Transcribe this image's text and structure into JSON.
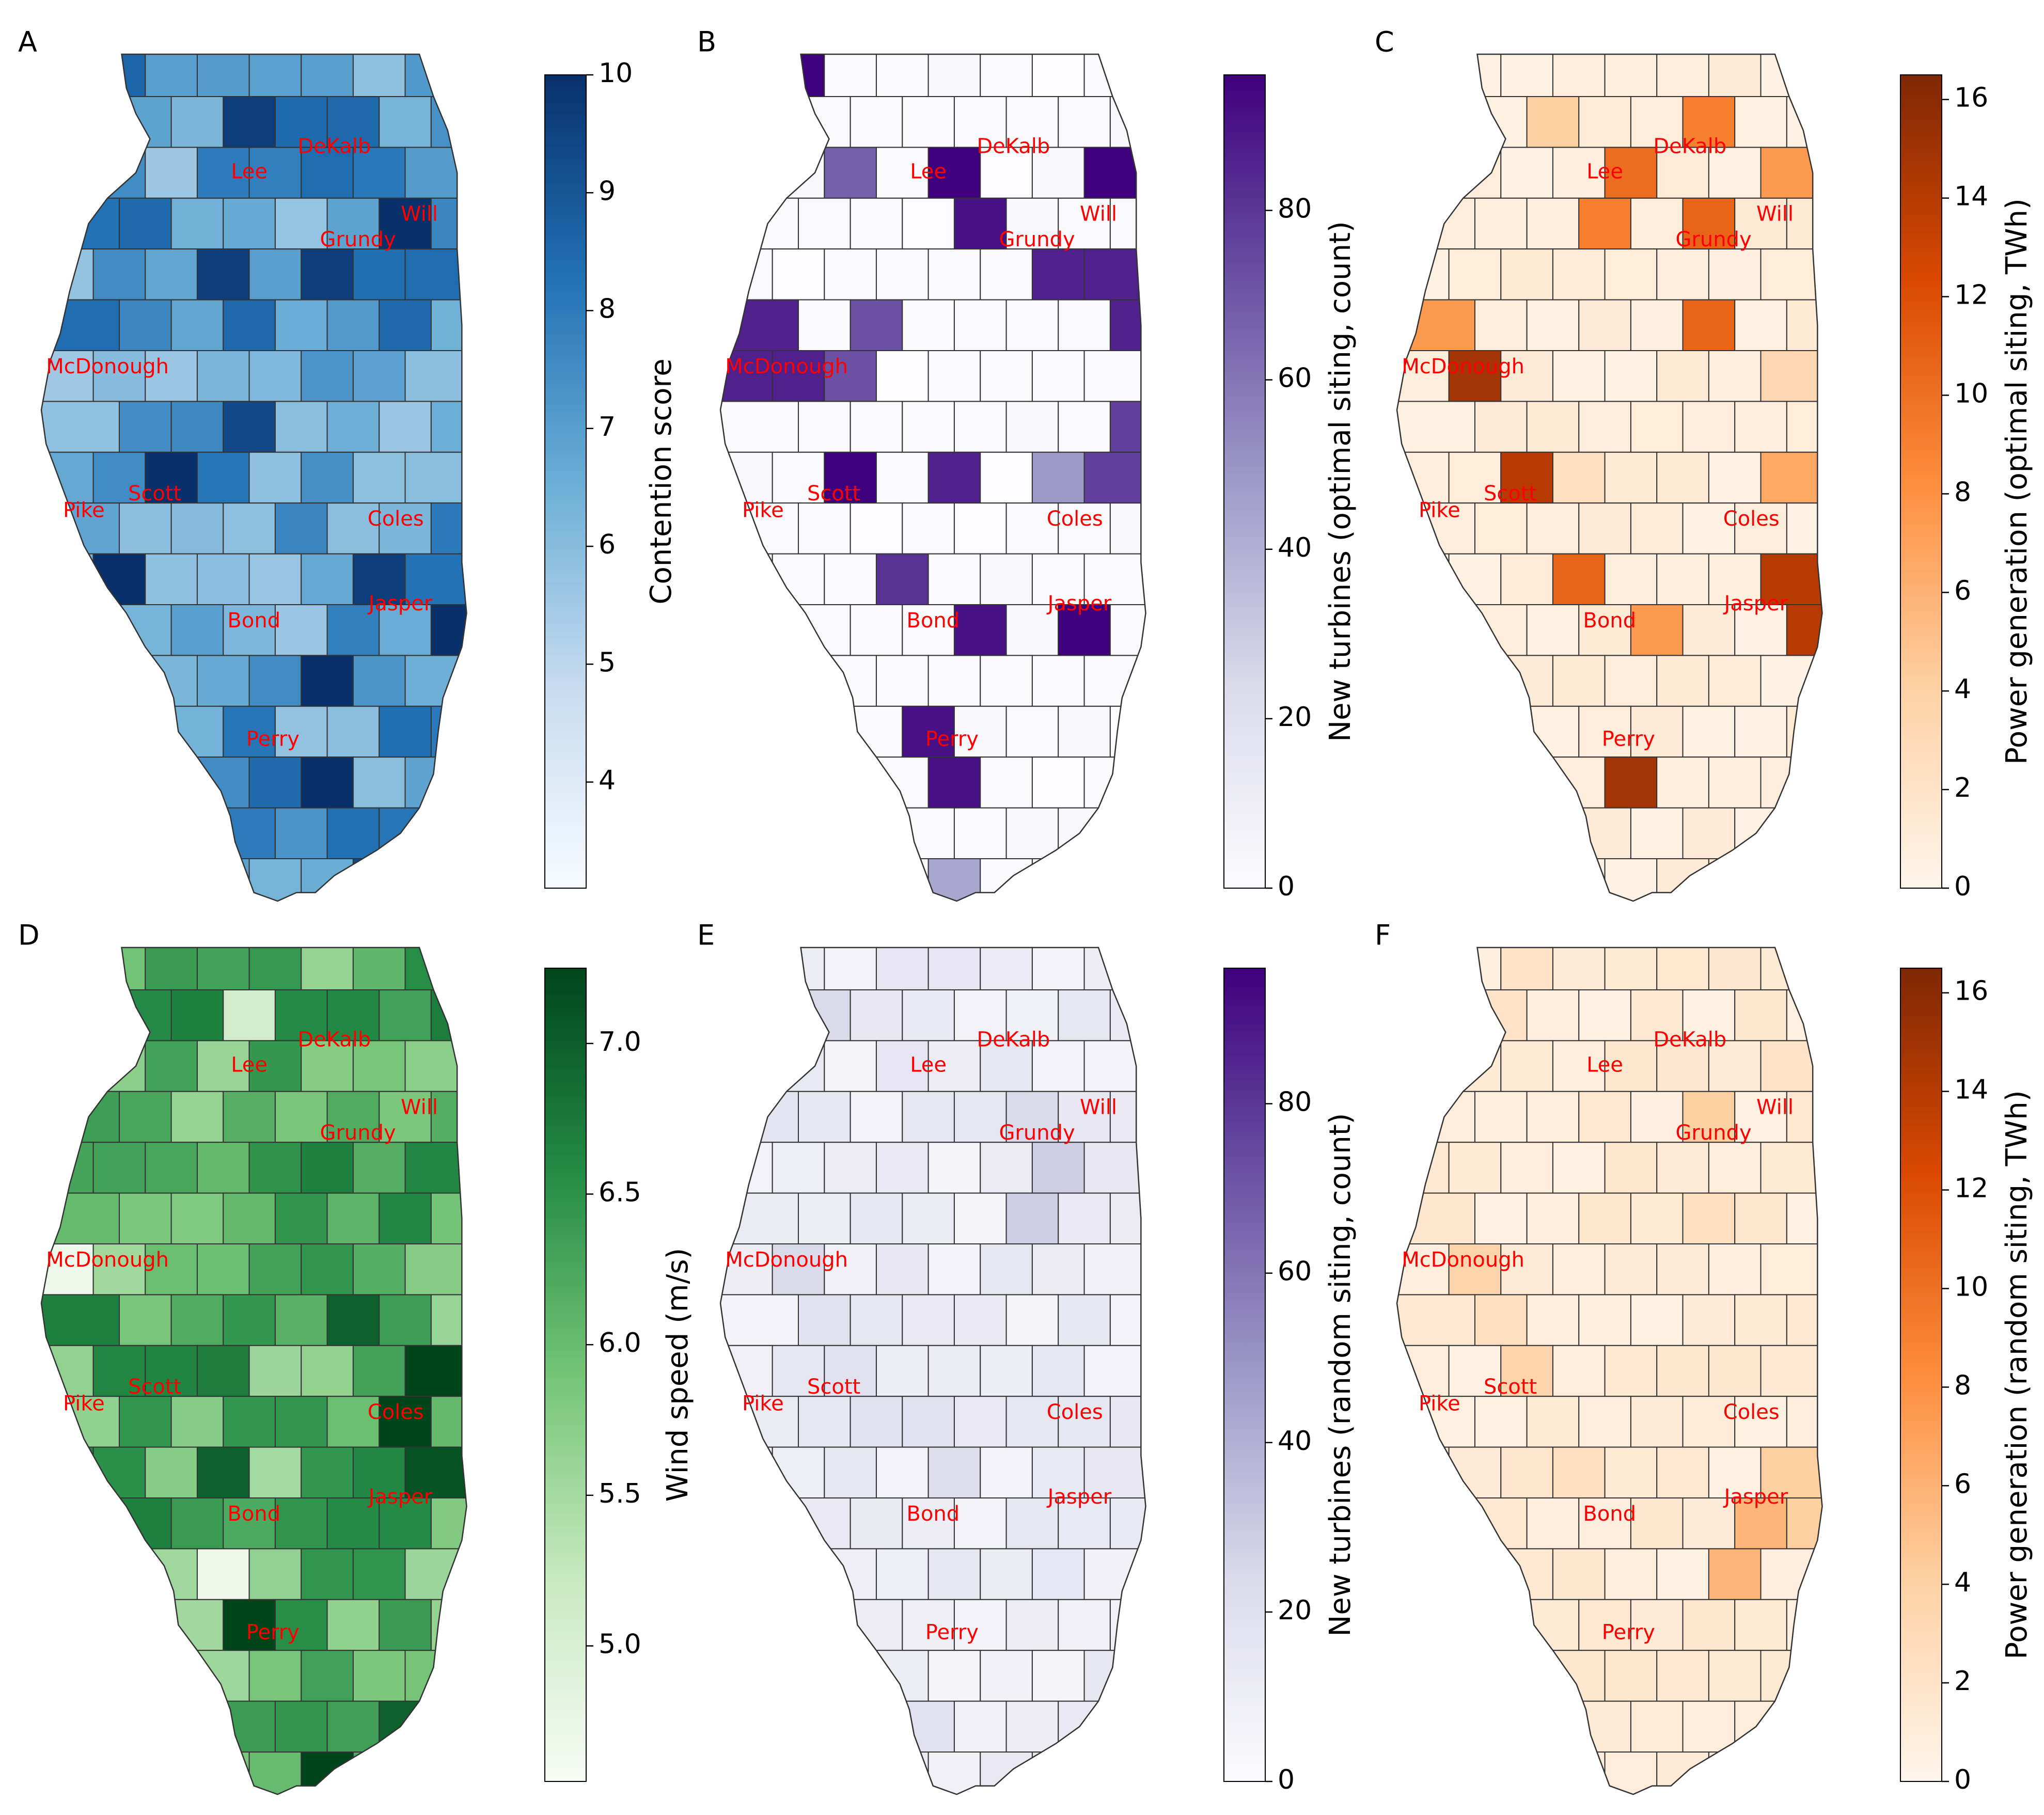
{
  "figure": {
    "panels": [
      {
        "id": "A",
        "label": "A",
        "colormap": "Blues",
        "colorbar": {
          "label": "Contention score",
          "min": 3.1,
          "max": 10,
          "ticks": [
            "4",
            "5",
            "6",
            "7",
            "8",
            "9",
            "10"
          ],
          "tick_values": [
            4,
            5,
            6,
            7,
            8,
            9,
            10
          ],
          "stops": [
            "#f7fbff",
            "#c6dbef",
            "#6baed6",
            "#2171b5",
            "#08306b"
          ]
        },
        "counties": [
          "DeKalb",
          "Lee",
          "Will",
          "Grundy",
          "McDonough",
          "Scott",
          "Pike",
          "Coles",
          "Jasper",
          "Bond",
          "Perry"
        ]
      },
      {
        "id": "B",
        "label": "B",
        "colormap": "Purples",
        "colorbar": {
          "label": "New turbines (optimal siting, count)",
          "min": 0,
          "max": 96,
          "ticks": [
            "0",
            "20",
            "40",
            "60",
            "80"
          ],
          "tick_values": [
            0,
            20,
            40,
            60,
            80
          ],
          "stops": [
            "#fcfbfd",
            "#dadaeb",
            "#9e9ac8",
            "#6a51a3",
            "#3f007d"
          ]
        },
        "counties": [
          "DeKalb",
          "Lee",
          "Will",
          "Grundy",
          "McDonough",
          "Scott",
          "Pike",
          "Coles",
          "Jasper",
          "Bond",
          "Perry"
        ]
      },
      {
        "id": "C",
        "label": "C",
        "colormap": "Oranges",
        "colorbar": {
          "label": "Power generation (optimal siting, TWh)",
          "min": 0,
          "max": 16.5,
          "ticks": [
            "0",
            "2",
            "4",
            "6",
            "8",
            "10",
            "12",
            "14",
            "16"
          ],
          "tick_values": [
            0,
            2,
            4,
            6,
            8,
            10,
            12,
            14,
            16
          ],
          "stops": [
            "#fff5eb",
            "#fdd0a2",
            "#fd8d3c",
            "#d94801",
            "#7f2704"
          ]
        },
        "counties": [
          "DeKalb",
          "Lee",
          "Will",
          "Grundy",
          "McDonough",
          "Scott",
          "Pike",
          "Coles",
          "Jasper",
          "Bond",
          "Perry"
        ]
      },
      {
        "id": "D",
        "label": "D",
        "colormap": "Greens",
        "colorbar": {
          "label": "Wind speed (m/s)",
          "min": 4.55,
          "max": 7.25,
          "ticks": [
            "5.0",
            "5.5",
            "6.0",
            "6.5",
            "7.0"
          ],
          "tick_values": [
            5.0,
            5.5,
            6.0,
            6.5,
            7.0
          ],
          "stops": [
            "#f7fcf5",
            "#c7e9c0",
            "#74c476",
            "#238b45",
            "#00441b"
          ]
        },
        "counties": [
          "DeKalb",
          "Lee",
          "Will",
          "Grundy",
          "McDonough",
          "Scott",
          "Pike",
          "Coles",
          "Jasper",
          "Bond",
          "Perry"
        ]
      },
      {
        "id": "E",
        "label": "E",
        "colormap": "Purples",
        "colorbar": {
          "label": "New turbines (random siting, count)",
          "min": 0,
          "max": 96,
          "ticks": [
            "0",
            "20",
            "40",
            "60",
            "80"
          ],
          "tick_values": [
            0,
            20,
            40,
            60,
            80
          ],
          "stops": [
            "#fcfbfd",
            "#dadaeb",
            "#9e9ac8",
            "#6a51a3",
            "#3f007d"
          ]
        },
        "counties": [
          "DeKalb",
          "Lee",
          "Will",
          "Grundy",
          "McDonough",
          "Scott",
          "Pike",
          "Coles",
          "Jasper",
          "Bond",
          "Perry"
        ]
      },
      {
        "id": "F",
        "label": "F",
        "colormap": "Oranges",
        "colorbar": {
          "label": "Power generation (random siting, TWh)",
          "min": 0,
          "max": 16.5,
          "ticks": [
            "0",
            "2",
            "4",
            "6",
            "8",
            "10",
            "12",
            "14",
            "16"
          ],
          "tick_values": [
            0,
            2,
            4,
            6,
            8,
            10,
            12,
            14,
            16
          ],
          "stops": [
            "#fff5eb",
            "#fdd0a2",
            "#fd8d3c",
            "#d94801",
            "#7f2704"
          ]
        },
        "counties": [
          "DeKalb",
          "Lee",
          "Will",
          "Grundy",
          "McDonough",
          "Scott",
          "Pike",
          "Coles",
          "Jasper",
          "Bond",
          "Perry"
        ]
      }
    ],
    "county_label_color": "#ff0000",
    "border_color": "#222222"
  }
}
